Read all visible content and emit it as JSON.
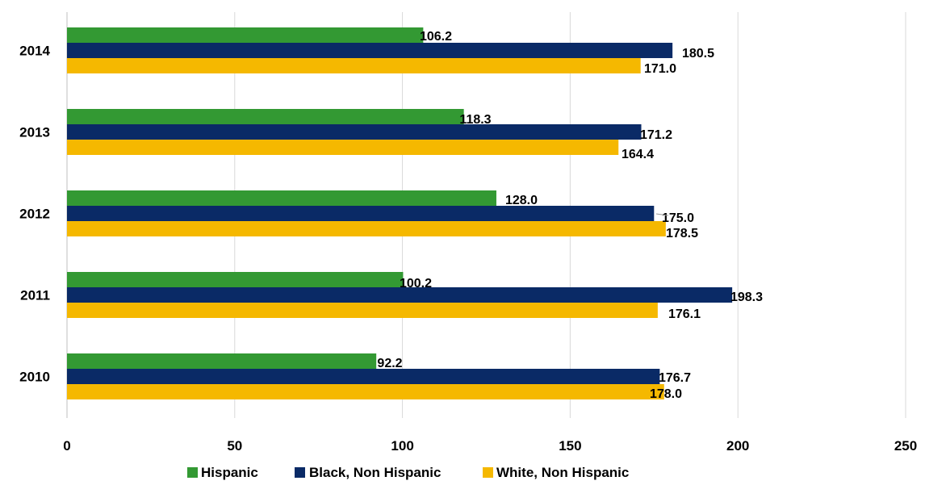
{
  "chart_data": {
    "type": "bar",
    "orientation": "horizontal",
    "categories": [
      "2014",
      "2013",
      "2012",
      "2011",
      "2010"
    ],
    "series": [
      {
        "name": "Hispanic",
        "color": "#339933",
        "values": [
          106.2,
          118.3,
          128.0,
          100.2,
          92.2
        ],
        "labels": [
          "106.2",
          "118.3",
          "128.0",
          "100.2",
          "92.2"
        ]
      },
      {
        "name": "Black, Non Hispanic",
        "color": "#0a2a66",
        "values": [
          180.5,
          171.2,
          175.0,
          198.3,
          176.7
        ],
        "labels": [
          "180.5",
          "171.2",
          "175.0",
          "198.3",
          "176.7"
        ]
      },
      {
        "name": "White, Non Hispanic",
        "color": "#f5b800",
        "values": [
          171.0,
          164.4,
          178.5,
          176.1,
          178.0
        ],
        "labels": [
          "171.0",
          "164.4",
          "178.5",
          "176.1",
          "178.0"
        ]
      }
    ],
    "xlim": [
      0,
      250
    ],
    "xticks": [
      "0",
      "50",
      "100",
      "150",
      "200",
      "250"
    ],
    "grid": true,
    "legend": "bottom"
  }
}
